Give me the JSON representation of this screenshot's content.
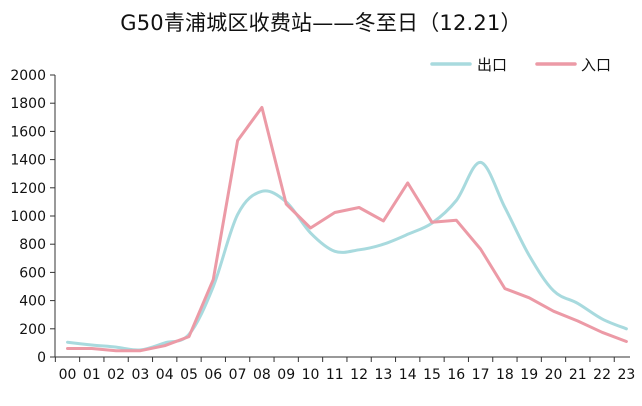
{
  "chart_data": {
    "type": "line",
    "title": "G50青浦城区收费站——冬至日（12.21）",
    "categories": [
      "00",
      "01",
      "02",
      "03",
      "04",
      "05",
      "06",
      "07",
      "08",
      "09",
      "10",
      "11",
      "12",
      "13",
      "14",
      "15",
      "16",
      "17",
      "18",
      "19",
      "20",
      "21",
      "22",
      "23"
    ],
    "yticks": [
      "0",
      "200",
      "400",
      "600",
      "800",
      "1000",
      "1200",
      "1400",
      "1600",
      "1800",
      "2000"
    ],
    "ylim": [
      0,
      2000
    ],
    "legend_position": "top-right",
    "grid": false,
    "series": [
      {
        "name": "出口",
        "color": "#a8dade",
        "smooth": true,
        "values": [
          105,
          85,
          70,
          50,
          100,
          160,
          500,
          1010,
          1175,
          1100,
          880,
          750,
          760,
          800,
          870,
          950,
          1110,
          1380,
          1060,
          720,
          470,
          380,
          270,
          200
        ]
      },
      {
        "name": "入口",
        "color": "#ec9aa6",
        "smooth": false,
        "values": [
          60,
          60,
          45,
          45,
          80,
          145,
          550,
          1535,
          1770,
          1085,
          915,
          1025,
          1060,
          965,
          1235,
          955,
          970,
          765,
          485,
          420,
          325,
          255,
          175,
          110
        ]
      }
    ]
  }
}
